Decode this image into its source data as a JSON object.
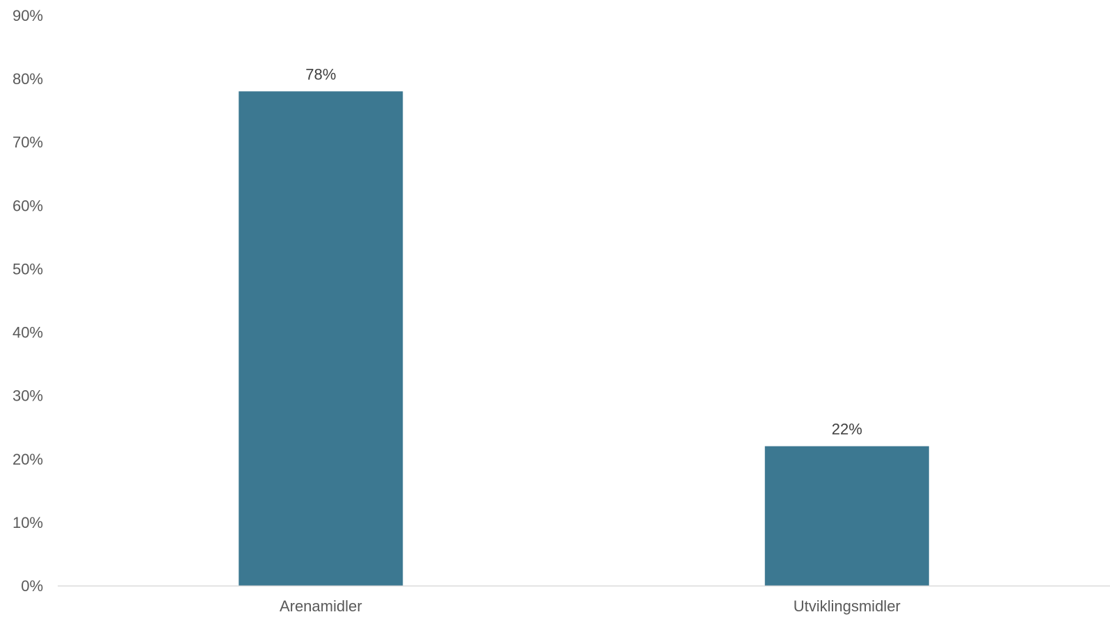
{
  "chart_data": {
    "type": "bar",
    "categories": [
      "Arenamidler",
      "Utviklingsmidler"
    ],
    "values": [
      78,
      22
    ],
    "data_labels": [
      "78%",
      "22%"
    ],
    "title": "",
    "xlabel": "",
    "ylabel": "",
    "ylim": [
      0,
      90
    ],
    "yticks": [
      0,
      10,
      20,
      30,
      40,
      50,
      60,
      70,
      80,
      90
    ],
    "ytick_labels": [
      "0%",
      "10%",
      "20%",
      "30%",
      "40%",
      "50%",
      "60%",
      "70%",
      "80%",
      "90%"
    ],
    "grid": false,
    "legend": "none",
    "colors": {
      "bar": "#3c7891",
      "axis": "#d9d9d9",
      "text": "#595959"
    }
  }
}
